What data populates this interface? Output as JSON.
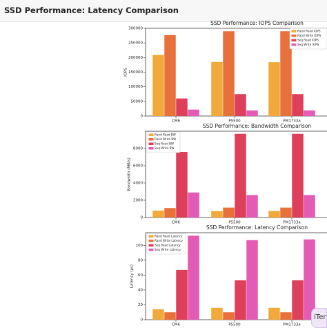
{
  "page": {
    "title": "SSD Performance: Latency Comparison"
  },
  "badge": {
    "text": "iTer"
  },
  "colors": {
    "rand_read": "#f2a93b",
    "rand_write": "#e8703a",
    "seq_read": "#de3f5a",
    "seq_write": "#e35bb5"
  },
  "chart_data": [
    {
      "type": "bar",
      "title": "SSD Performance: IOPS Comparison",
      "xlabel": "",
      "ylabel": "IOPS",
      "categories": [
        "CM6",
        "P5500",
        "PM1733a"
      ],
      "ylim": [
        0,
        300000
      ],
      "yticks": [
        0,
        50000,
        100000,
        150000,
        200000,
        250000,
        300000
      ],
      "legend_position": "top-right",
      "series": [
        {
          "name": "Rand Read IOPS",
          "values": [
            209000,
            185000,
            184000
          ]
        },
        {
          "name": "Rand Write IOPS",
          "values": [
            277000,
            290000,
            290000
          ]
        },
        {
          "name": "Seq Read IOPS",
          "values": [
            60000,
            75000,
            75000
          ]
        },
        {
          "name": "Seq Write IOPS",
          "values": [
            22000,
            19000,
            19000
          ]
        }
      ]
    },
    {
      "type": "bar",
      "title": "SSD Performance: Bandwidth Comparison",
      "xlabel": "",
      "ylabel": "Bandwidth (MB/s)",
      "categories": [
        "CM6",
        "P5500",
        "PM1733a"
      ],
      "ylim": [
        0,
        10000
      ],
      "yticks": [
        0,
        2000,
        4000,
        6000,
        8000
      ],
      "legend_position": "top-left",
      "series": [
        {
          "name": "Rand Read BW",
          "values": [
            800,
            750,
            750
          ]
        },
        {
          "name": "Rand Write BW",
          "values": [
            1100,
            1150,
            1150
          ]
        },
        {
          "name": "Seq Read BW",
          "values": [
            7600,
            9700,
            9700
          ]
        },
        {
          "name": "Seq Write BW",
          "values": [
            2900,
            2600,
            2600
          ]
        }
      ]
    },
    {
      "type": "bar",
      "title": "SSD Performance: Latency Comparison",
      "xlabel": "",
      "ylabel": "Latency (μs)",
      "categories": [
        "CM6",
        "P5500",
        "PM1733a"
      ],
      "ylim": [
        0,
        117
      ],
      "yticks": [
        0,
        20,
        40,
        60,
        80,
        100
      ],
      "legend_position": "top-left",
      "series": [
        {
          "name": "Rand Read Latency",
          "values": [
            14,
            16,
            16
          ]
        },
        {
          "name": "Rand Write Latency",
          "values": [
            10,
            10,
            10
          ]
        },
        {
          "name": "Seq Read Latency",
          "values": [
            67,
            53,
            53
          ]
        },
        {
          "name": "Seq Write Latency",
          "values": [
            113,
            107,
            108
          ]
        }
      ]
    }
  ]
}
